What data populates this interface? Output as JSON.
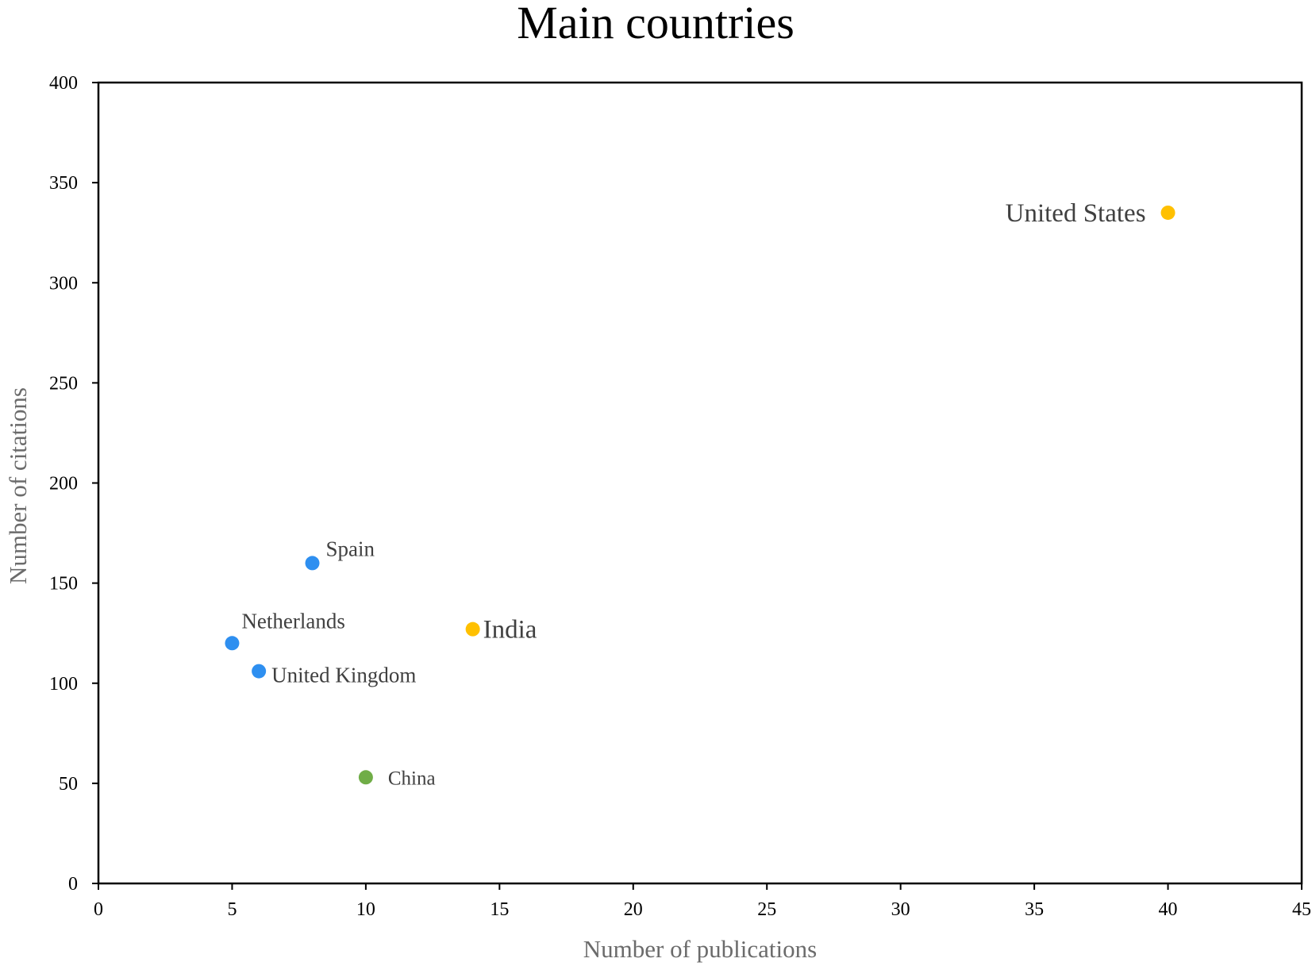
{
  "chart_data": {
    "type": "scatter",
    "title": "Main countries",
    "xlabel": "Number of publications",
    "ylabel": "Number of citations",
    "xlim": [
      0,
      45
    ],
    "ylim": [
      0,
      400
    ],
    "x_ticks": [
      0,
      5,
      10,
      15,
      20,
      25,
      30,
      35,
      40,
      45
    ],
    "y_ticks": [
      0,
      50,
      100,
      150,
      200,
      250,
      300,
      350,
      400
    ],
    "grid": false,
    "points": [
      {
        "label": "United States",
        "x": 40,
        "y": 335,
        "color": "#FFC000"
      },
      {
        "label": "India",
        "x": 14,
        "y": 127,
        "color": "#FFC000"
      },
      {
        "label": "Spain",
        "x": 8,
        "y": 160,
        "color": "#2E8FF0"
      },
      {
        "label": "Netherlands",
        "x": 5,
        "y": 120,
        "color": "#2E8FF0"
      },
      {
        "label": "United Kingdom",
        "x": 6,
        "y": 106,
        "color": "#2E8FF0"
      },
      {
        "label": "China",
        "x": 10,
        "y": 53,
        "color": "#70AD47"
      }
    ]
  }
}
